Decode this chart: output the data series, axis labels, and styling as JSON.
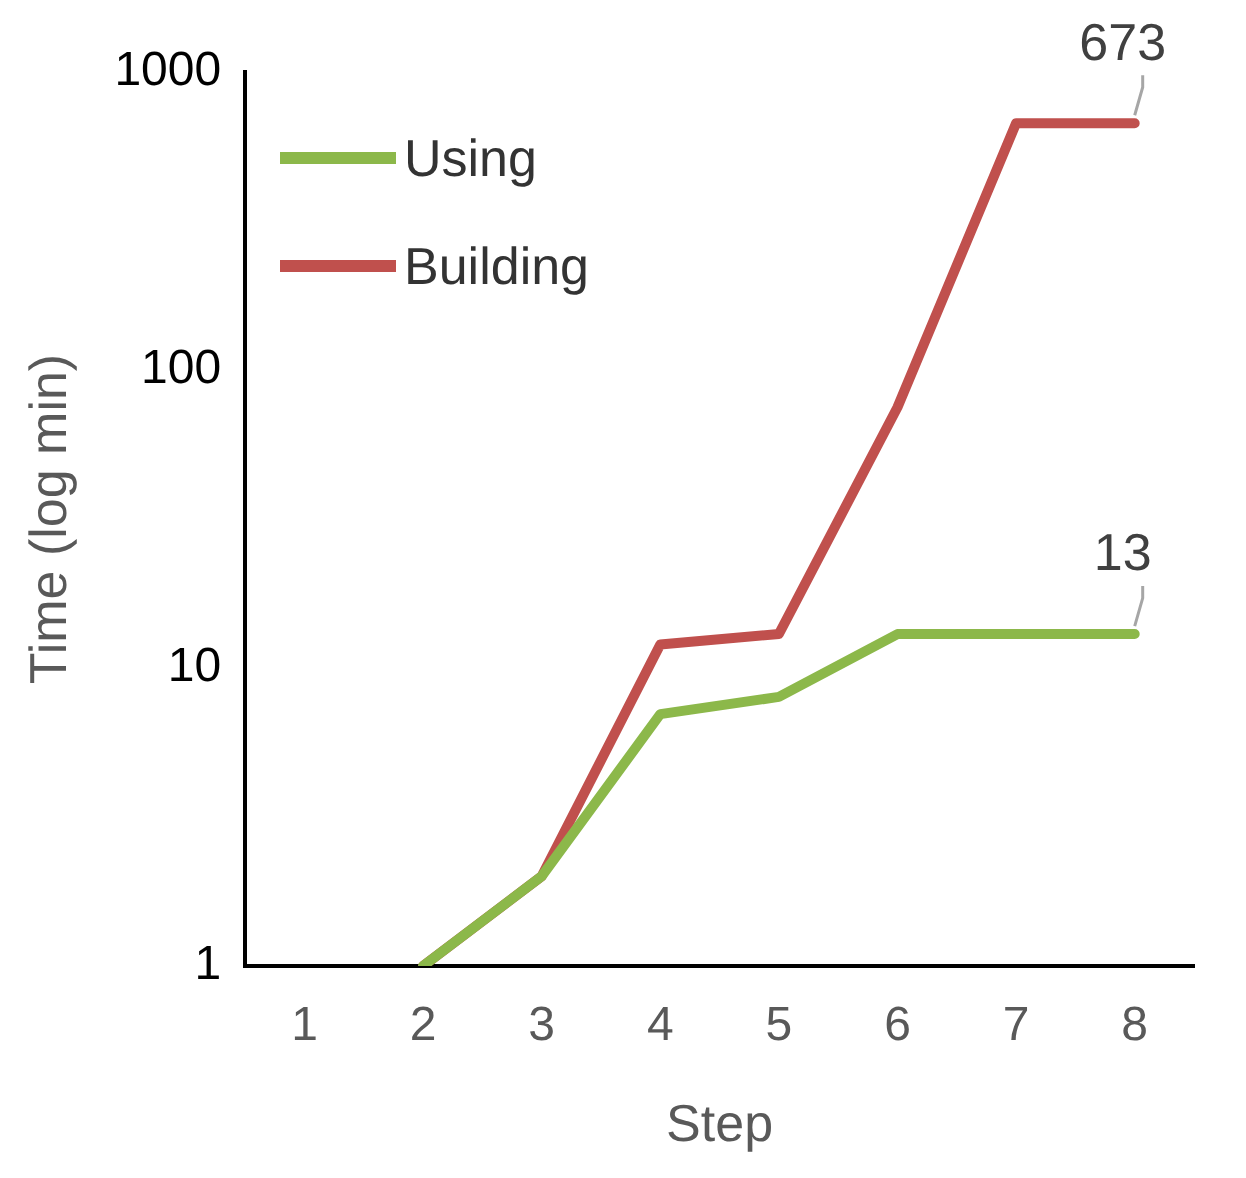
{
  "chart_data": {
    "type": "line",
    "xlabel": "Step",
    "ylabel": "Time (log min)",
    "categories": [
      "1",
      "2",
      "3",
      "4",
      "5",
      "6",
      "7",
      "8"
    ],
    "series": [
      {
        "name": "Using",
        "color": "#8cb84a",
        "values": [
          null,
          1,
          2,
          7,
          8,
          13,
          13,
          13
        ],
        "value_labels": [
          null,
          null,
          null,
          null,
          null,
          null,
          null,
          "13"
        ]
      },
      {
        "name": "Building",
        "color": "#c0504d",
        "values": [
          null,
          1,
          2,
          12,
          13,
          75,
          673,
          673
        ],
        "value_labels": [
          null,
          null,
          null,
          null,
          null,
          null,
          null,
          "673"
        ]
      }
    ],
    "log": "y",
    "ylim": [
      1,
      1000
    ],
    "yticks": [
      1,
      10,
      100,
      1000
    ],
    "grid": false,
    "legend": "top left",
    "marker": "none",
    "line_style": "solid"
  }
}
